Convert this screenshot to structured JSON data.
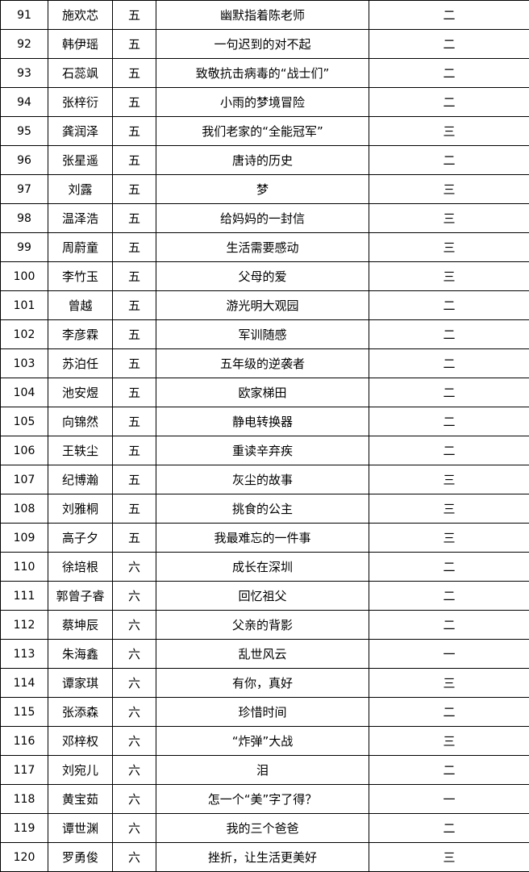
{
  "rows": [
    {
      "no": "91",
      "name": "施欢芯",
      "grade": "五",
      "title": "幽默指着陈老师",
      "award": "二"
    },
    {
      "no": "92",
      "name": "韩伊瑶",
      "grade": "五",
      "title": "一句迟到的对不起",
      "award": "二"
    },
    {
      "no": "93",
      "name": "石蕊飒",
      "grade": "五",
      "title": "致敬抗击病毒的“战士们”",
      "award": "二"
    },
    {
      "no": "94",
      "name": "张梓衍",
      "grade": "五",
      "title": "小雨的梦境冒险",
      "award": "二"
    },
    {
      "no": "95",
      "name": "龚润泽",
      "grade": "五",
      "title": "我们老家的“全能冠军”",
      "award": "三"
    },
    {
      "no": "96",
      "name": "张星遥",
      "grade": "五",
      "title": "唐诗的历史",
      "award": "二"
    },
    {
      "no": "97",
      "name": "刘露",
      "grade": "五",
      "title": "梦",
      "award": "三"
    },
    {
      "no": "98",
      "name": "温泽浩",
      "grade": "五",
      "title": "给妈妈的一封信",
      "award": "三"
    },
    {
      "no": "99",
      "name": "周蔚童",
      "grade": "五",
      "title": "生活需要感动",
      "award": "三"
    },
    {
      "no": "100",
      "name": "李竹玉",
      "grade": "五",
      "title": "父母的爱",
      "award": "三"
    },
    {
      "no": "101",
      "name": "曾越",
      "grade": "五",
      "title": "游光明大观园",
      "award": "二"
    },
    {
      "no": "102",
      "name": "李彦霖",
      "grade": "五",
      "title": "军训随感",
      "award": "二"
    },
    {
      "no": "103",
      "name": "苏泊任",
      "grade": "五",
      "title": "五年级的逆袭者",
      "award": "二"
    },
    {
      "no": "104",
      "name": "池安煜",
      "grade": "五",
      "title": "欧家梯田",
      "award": "二"
    },
    {
      "no": "105",
      "name": "向锦然",
      "grade": "五",
      "title": "静电转换器",
      "award": "二"
    },
    {
      "no": "106",
      "name": "王轶尘",
      "grade": "五",
      "title": "重读辛弃疾",
      "award": "二"
    },
    {
      "no": "107",
      "name": "纪博瀚",
      "grade": "五",
      "title": "灰尘的故事",
      "award": "三"
    },
    {
      "no": "108",
      "name": "刘雅桐",
      "grade": "五",
      "title": "挑食的公主",
      "award": "三"
    },
    {
      "no": "109",
      "name": "高子夕",
      "grade": "五",
      "title": "我最难忘的一件事",
      "award": "三"
    },
    {
      "no": "110",
      "name": "徐培根",
      "grade": "六",
      "title": "成长在深圳",
      "award": "二"
    },
    {
      "no": "111",
      "name": "郭曾子睿",
      "grade": "六",
      "title": "回忆祖父",
      "award": "二"
    },
    {
      "no": "112",
      "name": "蔡坤辰",
      "grade": "六",
      "title": "父亲的背影",
      "award": "二"
    },
    {
      "no": "113",
      "name": "朱海鑫",
      "grade": "六",
      "title": "乱世风云",
      "award": "一"
    },
    {
      "no": "114",
      "name": "谭家琪",
      "grade": "六",
      "title": "有你，真好",
      "award": "三"
    },
    {
      "no": "115",
      "name": "张添森",
      "grade": "六",
      "title": "珍惜时间",
      "award": "二"
    },
    {
      "no": "116",
      "name": "邓梓权",
      "grade": "六",
      "title": "“炸弹”大战",
      "award": "三"
    },
    {
      "no": "117",
      "name": "刘宛儿",
      "grade": "六",
      "title": "泪",
      "award": "二"
    },
    {
      "no": "118",
      "name": "黄宝茹",
      "grade": "六",
      "title": "怎一个“美”字了得？",
      "award": "一"
    },
    {
      "no": "119",
      "name": "谭世渊",
      "grade": "六",
      "title": "我的三个爸爸",
      "award": "二"
    },
    {
      "no": "120",
      "name": "罗勇俊",
      "grade": "六",
      "title": "挫折，让生活更美好",
      "award": "三"
    }
  ]
}
